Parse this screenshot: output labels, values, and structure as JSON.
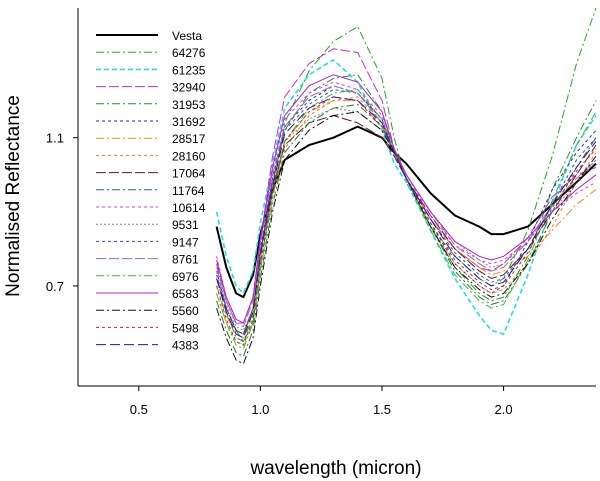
{
  "chart_data": {
    "type": "line",
    "title": "",
    "xlabel": "wavelength (micron)",
    "ylabel": "Normalised Reflectance",
    "xlim": [
      0.25,
      2.38
    ],
    "ylim": [
      0.43,
      1.45
    ],
    "xticks": [
      {
        "value": 0.5,
        "label": "0.5"
      },
      {
        "value": 1.0,
        "label": "1.0"
      },
      {
        "value": 1.5,
        "label": "1.5"
      },
      {
        "value": 2.0,
        "label": "2.0"
      }
    ],
    "yticks": [
      {
        "value": 0.7,
        "label": "0.7"
      },
      {
        "value": 1.1,
        "label": "1.1"
      }
    ],
    "grid": false,
    "legend_position": "top-left",
    "x": [
      0.82,
      0.86,
      0.9,
      0.93,
      0.97,
      1.0,
      1.05,
      1.1,
      1.2,
      1.3,
      1.4,
      1.5,
      1.55,
      1.6,
      1.7,
      1.8,
      1.9,
      1.95,
      2.0,
      2.1,
      2.2,
      2.3,
      2.38
    ],
    "series": [
      {
        "name": "Vesta",
        "color": "#000000",
        "width": 2.0,
        "dash": "",
        "values": [
          0.86,
          0.75,
          0.68,
          0.67,
          0.73,
          0.84,
          0.96,
          1.04,
          1.08,
          1.1,
          1.13,
          1.1,
          1.06,
          1.03,
          0.95,
          0.89,
          0.86,
          0.84,
          0.84,
          0.86,
          0.92,
          0.98,
          1.03
        ]
      },
      {
        "name": "64276",
        "color": "#1fa81f",
        "width": 1,
        "dash": "8 3 2 3",
        "values": [
          0.7,
          0.62,
          0.58,
          0.55,
          0.6,
          0.75,
          0.96,
          1.14,
          1.28,
          1.36,
          1.4,
          1.26,
          1.1,
          0.98,
          0.86,
          0.78,
          0.72,
          0.7,
          0.72,
          0.85,
          1.05,
          1.3,
          1.45
        ]
      },
      {
        "name": "61235",
        "color": "#22dede",
        "width": 1.6,
        "dash": "5 3",
        "values": [
          0.9,
          0.78,
          0.7,
          0.68,
          0.74,
          0.87,
          1.03,
          1.18,
          1.27,
          1.31,
          1.25,
          1.12,
          1.03,
          0.98,
          0.85,
          0.72,
          0.62,
          0.58,
          0.57,
          0.73,
          0.92,
          1.08,
          1.16
        ]
      },
      {
        "name": "32940",
        "color": "#c42fc4",
        "width": 1,
        "dash": "10 3",
        "values": [
          0.76,
          0.66,
          0.6,
          0.6,
          0.67,
          0.82,
          1.05,
          1.21,
          1.3,
          1.34,
          1.33,
          1.2,
          1.07,
          0.99,
          0.88,
          0.8,
          0.75,
          0.74,
          0.76,
          0.83,
          0.94,
          1.0,
          1.02
        ]
      },
      {
        "name": "31953",
        "color": "#2e8a2e",
        "width": 1,
        "dash": "8 3 2 3",
        "values": [
          0.72,
          0.63,
          0.56,
          0.55,
          0.62,
          0.78,
          0.98,
          1.12,
          1.22,
          1.26,
          1.27,
          1.17,
          1.06,
          0.99,
          0.86,
          0.75,
          0.68,
          0.66,
          0.67,
          0.78,
          0.96,
          1.1,
          1.2
        ]
      },
      {
        "name": "31692",
        "color": "#1c2fa8",
        "width": 1,
        "dash": "3 3",
        "values": [
          0.74,
          0.64,
          0.58,
          0.57,
          0.64,
          0.8,
          0.99,
          1.13,
          1.2,
          1.24,
          1.22,
          1.15,
          1.06,
          0.99,
          0.87,
          0.76,
          0.7,
          0.68,
          0.7,
          0.82,
          0.96,
          1.06,
          1.12
        ]
      },
      {
        "name": "28517",
        "color": "#f08c1e",
        "width": 1,
        "dash": "8 3 2 3",
        "values": [
          0.7,
          0.62,
          0.57,
          0.56,
          0.63,
          0.77,
          0.96,
          1.09,
          1.17,
          1.2,
          1.2,
          1.13,
          1.06,
          0.99,
          0.88,
          0.8,
          0.75,
          0.73,
          0.74,
          0.78,
          0.85,
          0.92,
          0.96
        ]
      },
      {
        "name": "28160",
        "color": "#f07a2a",
        "width": 1,
        "dash": "3 3",
        "values": [
          0.68,
          0.6,
          0.55,
          0.54,
          0.61,
          0.75,
          0.94,
          1.07,
          1.16,
          1.2,
          1.21,
          1.14,
          1.06,
          0.99,
          0.86,
          0.76,
          0.7,
          0.68,
          0.69,
          0.76,
          0.86,
          0.98,
          1.06
        ]
      },
      {
        "name": "17064",
        "color": "#5a1a1a",
        "width": 1,
        "dash": "10 3",
        "values": [
          0.72,
          0.64,
          0.58,
          0.57,
          0.64,
          0.79,
          0.96,
          1.08,
          1.14,
          1.16,
          1.14,
          1.1,
          1.05,
          0.99,
          0.89,
          0.8,
          0.74,
          0.72,
          0.73,
          0.8,
          0.9,
          1.0,
          1.08
        ]
      },
      {
        "name": "11764",
        "color": "#2a7a2a",
        "width": 1,
        "dash": "8 3 2 3",
        "values": [
          0.66,
          0.58,
          0.52,
          0.51,
          0.58,
          0.72,
          0.92,
          1.06,
          1.14,
          1.18,
          1.19,
          1.13,
          1.06,
          0.99,
          0.86,
          0.74,
          0.67,
          0.65,
          0.66,
          0.76,
          0.9,
          1.02,
          1.1
        ]
      },
      {
        "name": "10614",
        "color": "#e23ad8",
        "width": 1,
        "dash": "3 3",
        "values": [
          0.78,
          0.67,
          0.61,
          0.6,
          0.67,
          0.82,
          1.01,
          1.15,
          1.22,
          1.25,
          1.23,
          1.16,
          1.07,
          1.0,
          0.89,
          0.81,
          0.77,
          0.76,
          0.77,
          0.82,
          0.9,
          0.95,
          0.98
        ]
      },
      {
        "name": "9531",
        "color": "#8a8a8a",
        "width": 1,
        "dash": "2 2",
        "values": [
          0.74,
          0.65,
          0.59,
          0.58,
          0.64,
          0.78,
          0.97,
          1.09,
          1.15,
          1.18,
          1.17,
          1.12,
          1.06,
          1.0,
          0.9,
          0.82,
          0.77,
          0.75,
          0.76,
          0.82,
          0.9,
          0.98,
          1.04
        ]
      },
      {
        "name": "9147",
        "color": "#2a4fc0",
        "width": 1,
        "dash": "3 3",
        "values": [
          0.73,
          0.64,
          0.58,
          0.57,
          0.64,
          0.79,
          0.98,
          1.12,
          1.19,
          1.23,
          1.22,
          1.15,
          1.06,
          0.99,
          0.88,
          0.79,
          0.73,
          0.71,
          0.72,
          0.8,
          0.92,
          1.04,
          1.1
        ]
      },
      {
        "name": "8761",
        "color": "#a06aa0",
        "width": 1,
        "dash": "10 3",
        "values": [
          0.75,
          0.66,
          0.6,
          0.59,
          0.66,
          0.81,
          1.0,
          1.13,
          1.21,
          1.24,
          1.22,
          1.14,
          1.06,
          1.0,
          0.9,
          0.81,
          0.76,
          0.74,
          0.75,
          0.82,
          0.92,
          0.99,
          1.04
        ]
      },
      {
        "name": "6976",
        "color": "#3ab83a",
        "width": 1,
        "dash": "8 3 2 3",
        "values": [
          0.68,
          0.6,
          0.54,
          0.53,
          0.6,
          0.74,
          0.94,
          1.09,
          1.18,
          1.22,
          1.23,
          1.15,
          1.06,
          0.99,
          0.85,
          0.73,
          0.66,
          0.64,
          0.65,
          0.77,
          0.93,
          1.08,
          1.17
        ]
      },
      {
        "name": "6583",
        "color": "#b020d0",
        "width": 1,
        "dash": "",
        "values": [
          0.77,
          0.67,
          0.61,
          0.6,
          0.67,
          0.83,
          1.02,
          1.16,
          1.24,
          1.27,
          1.25,
          1.17,
          1.07,
          1.0,
          0.9,
          0.82,
          0.78,
          0.77,
          0.78,
          0.83,
          0.9,
          0.96,
          1.0
        ]
      },
      {
        "name": "5560",
        "color": "#101010",
        "width": 1,
        "dash": "8 3 2 3",
        "values": [
          0.64,
          0.56,
          0.5,
          0.49,
          0.56,
          0.7,
          0.9,
          1.04,
          1.12,
          1.16,
          1.17,
          1.12,
          1.06,
          0.99,
          0.86,
          0.75,
          0.69,
          0.67,
          0.68,
          0.76,
          0.88,
          0.98,
          1.05
        ]
      },
      {
        "name": "5498",
        "color": "#d02020",
        "width": 1,
        "dash": "3 3",
        "values": [
          0.7,
          0.61,
          0.55,
          0.54,
          0.61,
          0.76,
          0.95,
          1.09,
          1.17,
          1.21,
          1.2,
          1.13,
          1.06,
          0.99,
          0.87,
          0.77,
          0.71,
          0.69,
          0.7,
          0.79,
          0.91,
          1.01,
          1.07
        ]
      },
      {
        "name": "4383",
        "color": "#1a1a9a",
        "width": 1,
        "dash": "10 4",
        "values": [
          0.72,
          0.63,
          0.57,
          0.56,
          0.63,
          0.78,
          0.97,
          1.11,
          1.18,
          1.21,
          1.2,
          1.14,
          1.06,
          0.99,
          0.88,
          0.78,
          0.72,
          0.7,
          0.71,
          0.8,
          0.92,
          1.02,
          1.09
        ]
      }
    ]
  }
}
